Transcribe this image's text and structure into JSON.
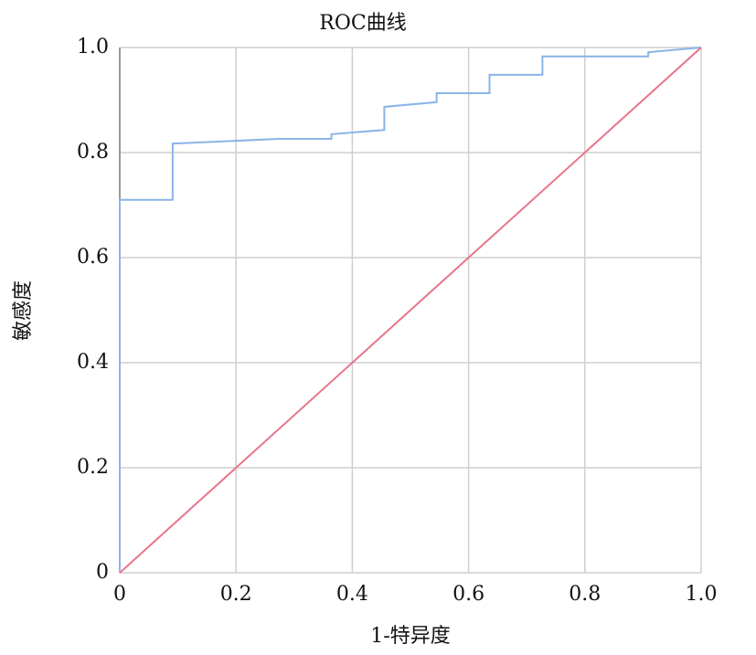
{
  "chart_data": {
    "type": "line",
    "title": "ROC曲线",
    "x_label": "1-特异度",
    "y_label": "敏感度",
    "xlim": [
      0,
      1
    ],
    "ylim": [
      0,
      1
    ],
    "xticks": [
      0,
      0.2,
      0.4,
      0.6,
      0.8,
      {
        "value": 1,
        "label": "1.0"
      }
    ],
    "yticks": [
      0,
      0.2,
      0.4,
      0.6,
      0.8,
      {
        "value": 1,
        "label": "1.0"
      }
    ],
    "grid": true,
    "series": [
      {
        "color": "#8ab4e8",
        "x": [
          0,
          0,
          0.091,
          0.091,
          0.273,
          0.364,
          0.364,
          0.455,
          0.455,
          0.545,
          0.545,
          0.636,
          0.636,
          0.727,
          0.727,
          0.909,
          0.909,
          1
        ],
        "values": [
          0,
          0.71,
          0.71,
          0.817,
          0.826,
          0.826,
          0.835,
          0.843,
          0.887,
          0.896,
          0.913,
          0.913,
          0.948,
          0.948,
          0.983,
          0.983,
          0.991,
          1
        ]
      },
      {
        "color": "#e8758a",
        "x": [
          0,
          1
        ],
        "values": [
          0,
          1
        ]
      }
    ]
  }
}
